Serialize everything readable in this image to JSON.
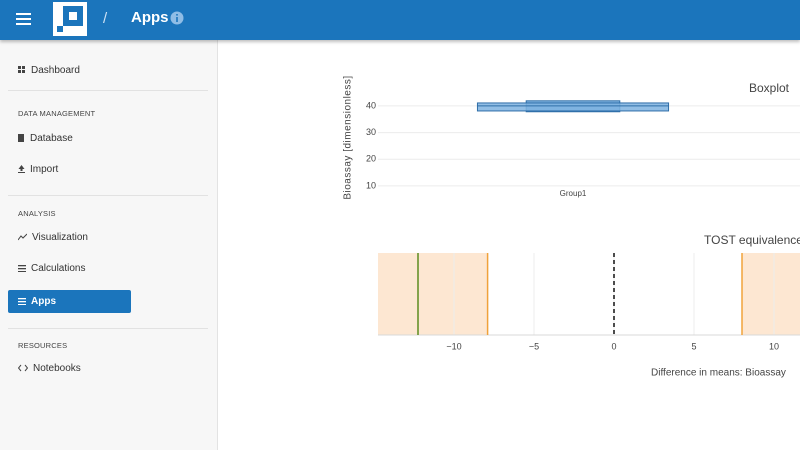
{
  "header": {
    "separator": "/",
    "title": "Apps"
  },
  "sidebar": {
    "top": [
      "Dashboard"
    ],
    "sections": [
      {
        "heading": "DATA MANAGEMENT",
        "items": [
          "Database",
          "Import"
        ]
      },
      {
        "heading": "ANALYSIS",
        "items": [
          "Visualization",
          "Calculations",
          "Apps"
        ],
        "active": 2
      },
      {
        "heading": "RESOURCES",
        "items": [
          "Notebooks"
        ]
      }
    ]
  },
  "chart_data": [
    {
      "type": "box",
      "title": "Boxplot",
      "y_label": "Bioassay [dimensionless]",
      "categories": [
        "Group1"
      ],
      "boxes": [
        {
          "min": 37.8,
          "q1": 38.1,
          "median": 40,
          "q3": 41.1,
          "max": 41.9
        }
      ],
      "color": "#7fb3e0",
      "ylim": [
        6.6,
        49.7
      ],
      "yticks": [
        10,
        20,
        30,
        40
      ],
      "grid": true
    },
    {
      "type": "tost",
      "title": "TOST equivalence",
      "x_label": "Difference in means: Bioassay",
      "lower_bound": -7.9,
      "upper_bound": 8.0,
      "difference": -12.25,
      "reference": 0,
      "region_color": "#fde7d2",
      "bound_color": "#f0a23a",
      "difference_color": "#5b8c1f",
      "xlim": [
        -14.75,
        14.75
      ],
      "xticks": [
        {
          "value": -10,
          "label": "−10"
        },
        {
          "value": -5,
          "label": "−5"
        },
        0,
        5,
        10
      ],
      "grid": true
    }
  ]
}
